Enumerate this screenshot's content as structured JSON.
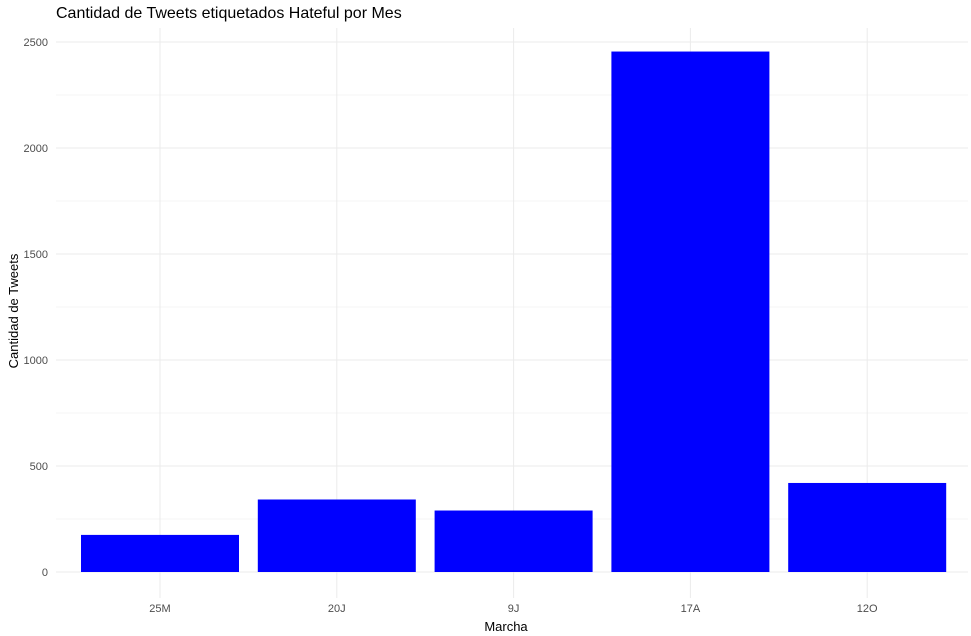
{
  "chart_data": {
    "type": "bar",
    "title": "Cantidad de Tweets etiquetados Hateful por Mes",
    "xlabel": "Marcha",
    "ylabel": "Cantidad de Tweets",
    "categories": [
      "25M",
      "20J",
      "9J",
      "17A",
      "12O"
    ],
    "values": [
      175,
      342,
      290,
      2455,
      420
    ],
    "ylim": [
      0,
      2500
    ],
    "yticks": [
      0,
      500,
      1000,
      1500,
      2000,
      2500
    ],
    "grid": true,
    "bar_color": "#0000ff"
  }
}
